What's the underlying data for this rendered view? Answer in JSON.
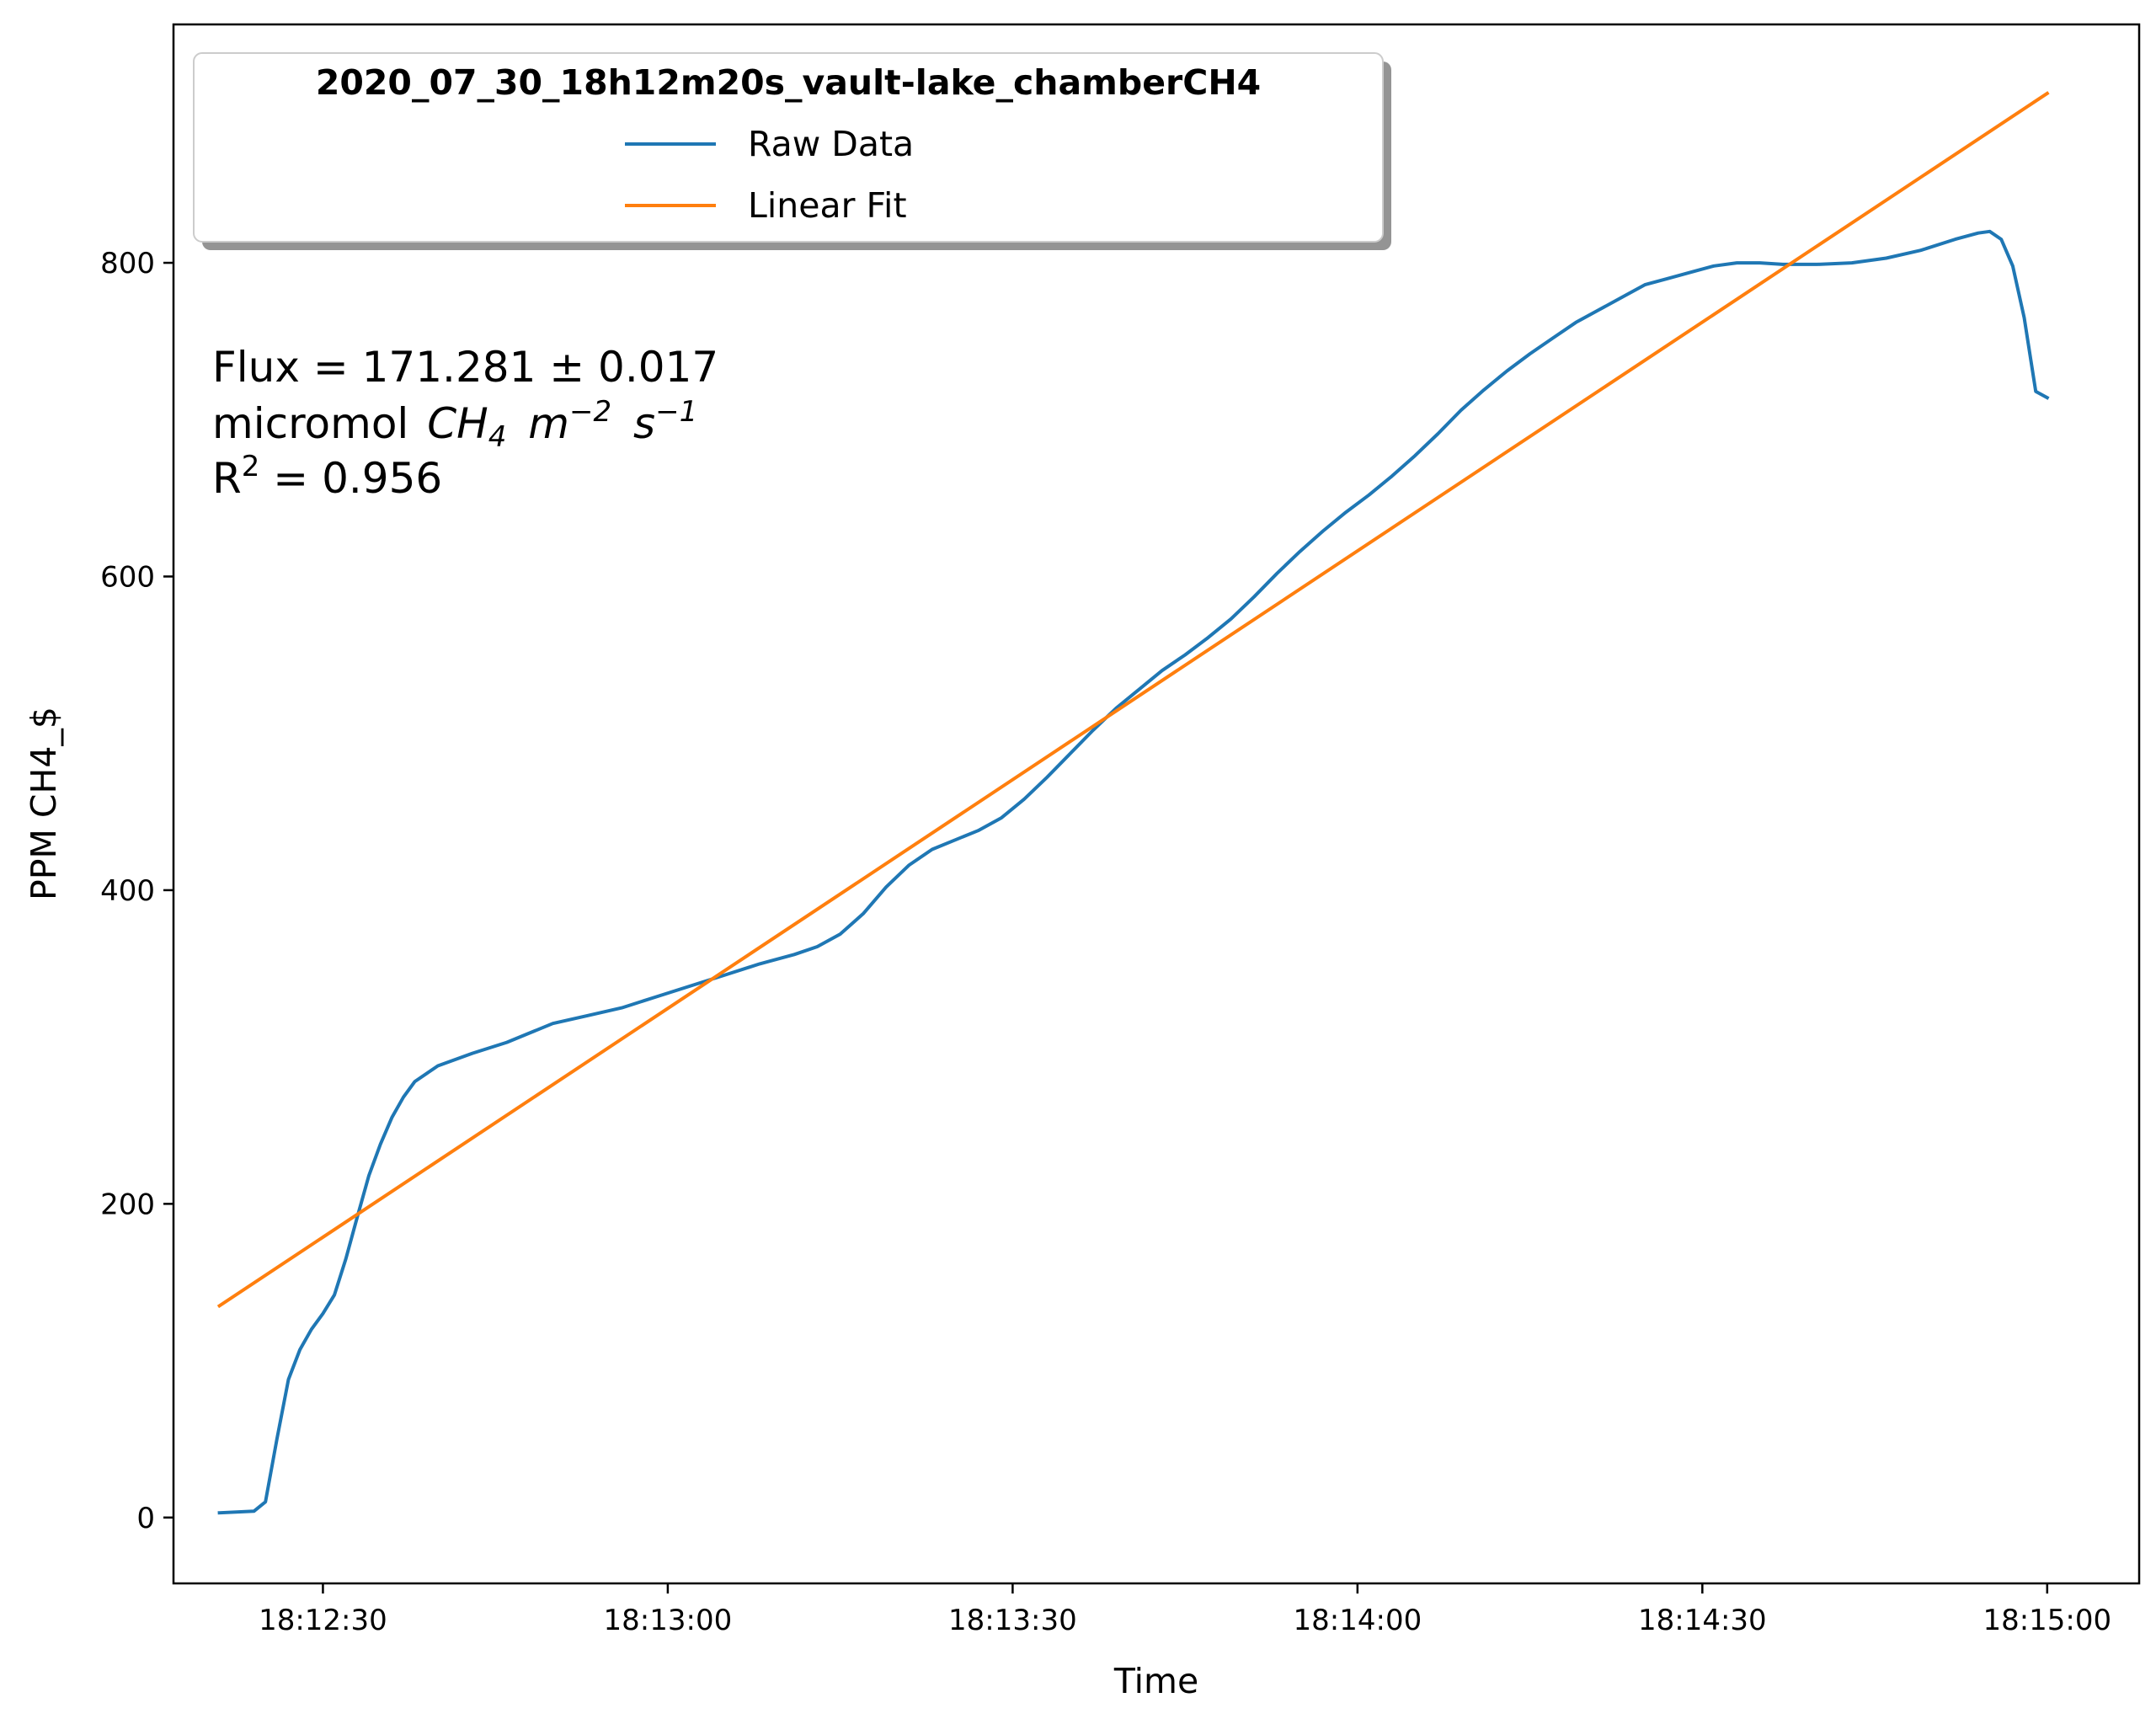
{
  "chart_data": {
    "type": "line",
    "xlabel": "Time",
    "ylabel": "PPM CH4_$",
    "x_ticks": [
      "18:12:30",
      "18:13:00",
      "18:13:30",
      "18:14:00",
      "18:14:30",
      "18:15:00"
    ],
    "y_ticks": [
      "0",
      "200",
      "400",
      "600",
      "800"
    ],
    "xlim": [
      "18:12:17",
      "18:15:08"
    ],
    "ylim": [
      -42,
      952
    ],
    "grid": false,
    "legend": {
      "title": "2020_07_30_18h12m20s_vault-lake_chamberCH4",
      "position": "top-left"
    },
    "annotation": {
      "flux_line": "Flux = 171.281 ± 0.017",
      "units_prefix": "micromol",
      "units_species": "CH",
      "units_species_sub": "4",
      "units_m": "m",
      "units_m_exp": "−2",
      "units_s": "s",
      "units_s_exp": "−1",
      "r2_label": "R",
      "r2_exp": "2",
      "r2_value": " = 0.956"
    },
    "series": [
      {
        "name": "Raw Data",
        "color": "#1f77b4",
        "points": [
          [
            "18:12:21",
            3
          ],
          [
            "18:12:24",
            4
          ],
          [
            "18:12:25",
            10
          ],
          [
            "18:12:26",
            50
          ],
          [
            "18:12:27",
            88
          ],
          [
            "18:12:28",
            107
          ],
          [
            "18:12:29",
            120
          ],
          [
            "18:12:30",
            130
          ],
          [
            "18:12:31",
            142
          ],
          [
            "18:12:32",
            165
          ],
          [
            "18:12:33",
            192
          ],
          [
            "18:12:34",
            218
          ],
          [
            "18:12:35",
            238
          ],
          [
            "18:12:36",
            255
          ],
          [
            "18:12:37",
            268
          ],
          [
            "18:12:38",
            278
          ],
          [
            "18:12:40",
            288
          ],
          [
            "18:12:43",
            296
          ],
          [
            "18:12:46",
            303
          ],
          [
            "18:12:48",
            309
          ],
          [
            "18:12:50",
            315
          ],
          [
            "18:12:53",
            320
          ],
          [
            "18:12:56",
            325
          ],
          [
            "18:12:59",
            332
          ],
          [
            "18:13:02",
            339
          ],
          [
            "18:13:05",
            346
          ],
          [
            "18:13:08",
            353
          ],
          [
            "18:13:11",
            359
          ],
          [
            "18:13:13",
            364
          ],
          [
            "18:13:15",
            372
          ],
          [
            "18:13:17",
            385
          ],
          [
            "18:13:19",
            402
          ],
          [
            "18:13:21",
            416
          ],
          [
            "18:13:23",
            426
          ],
          [
            "18:13:25",
            432
          ],
          [
            "18:13:27",
            438
          ],
          [
            "18:13:29",
            446
          ],
          [
            "18:13:31",
            458
          ],
          [
            "18:13:33",
            472
          ],
          [
            "18:13:35",
            487
          ],
          [
            "18:13:37",
            502
          ],
          [
            "18:13:39",
            516
          ],
          [
            "18:13:41",
            528
          ],
          [
            "18:13:43",
            540
          ],
          [
            "18:13:45",
            550
          ],
          [
            "18:13:47",
            561
          ],
          [
            "18:13:49",
            573
          ],
          [
            "18:13:51",
            587
          ],
          [
            "18:13:53",
            602
          ],
          [
            "18:13:55",
            616
          ],
          [
            "18:13:57",
            629
          ],
          [
            "18:13:59",
            641
          ],
          [
            "18:14:01",
            652
          ],
          [
            "18:14:03",
            664
          ],
          [
            "18:14:05",
            677
          ],
          [
            "18:14:07",
            691
          ],
          [
            "18:14:09",
            706
          ],
          [
            "18:14:11",
            719
          ],
          [
            "18:14:13",
            731
          ],
          [
            "18:14:15",
            742
          ],
          [
            "18:14:17",
            752
          ],
          [
            "18:14:19",
            762
          ],
          [
            "18:14:21",
            770
          ],
          [
            "18:14:23",
            778
          ],
          [
            "18:14:25",
            786
          ],
          [
            "18:14:27",
            790
          ],
          [
            "18:14:29",
            794
          ],
          [
            "18:14:31",
            798
          ],
          [
            "18:14:33",
            800
          ],
          [
            "18:14:35",
            800
          ],
          [
            "18:14:37",
            799
          ],
          [
            "18:14:40",
            799
          ],
          [
            "18:14:43",
            800
          ],
          [
            "18:14:46",
            803
          ],
          [
            "18:14:49",
            808
          ],
          [
            "18:14:52",
            815
          ],
          [
            "18:14:54",
            819
          ],
          [
            "18:14:55",
            820
          ],
          [
            "18:14:56",
            815
          ],
          [
            "18:14:57",
            798
          ],
          [
            "18:14:58",
            765
          ],
          [
            "18:14:59",
            718
          ],
          [
            "18:15:00",
            714
          ]
        ]
      },
      {
        "name": "Linear Fit",
        "color": "#ff7f0e",
        "points": [
          [
            "18:12:21",
            135
          ],
          [
            "18:15:00",
            908
          ]
        ]
      }
    ]
  }
}
